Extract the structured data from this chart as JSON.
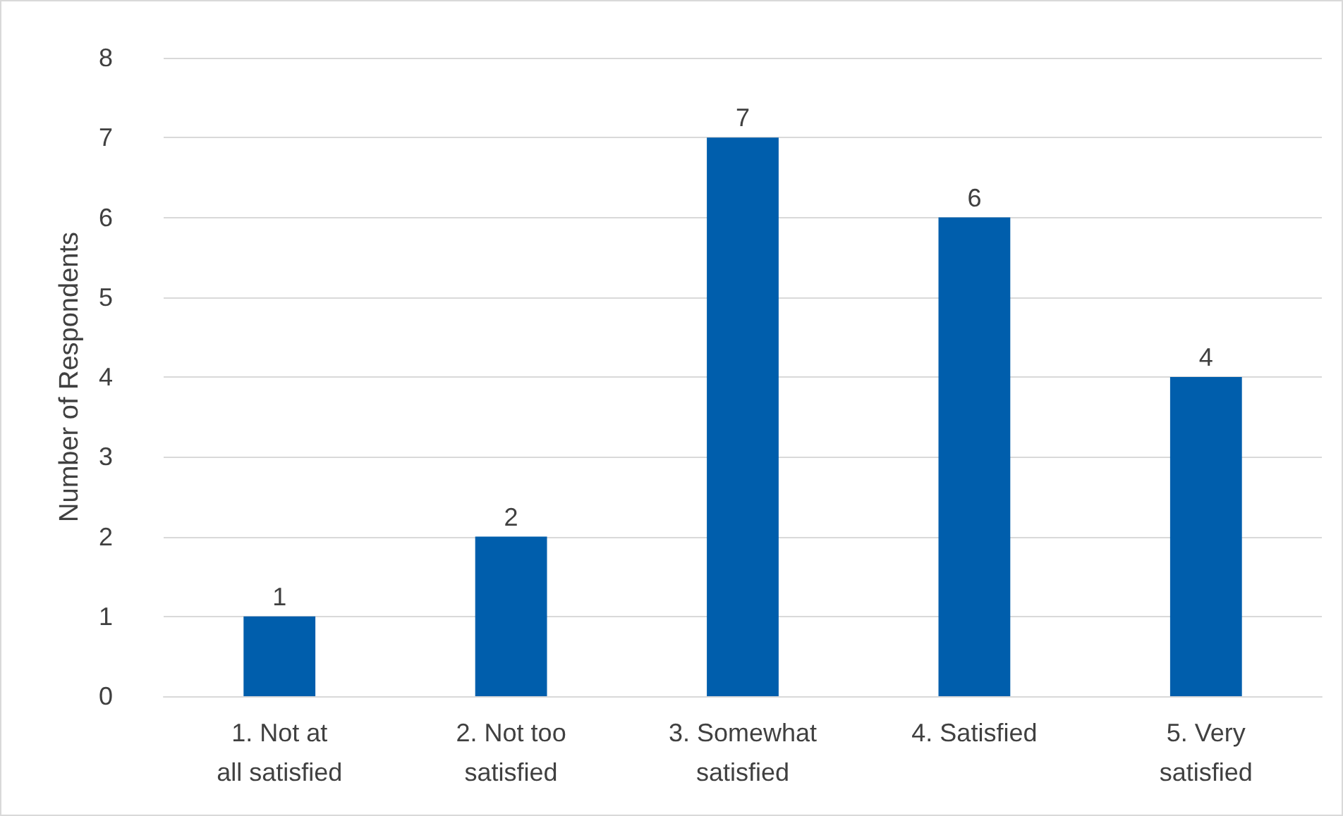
{
  "chart_data": {
    "type": "bar",
    "ylabel": "Number of Respondents",
    "categories": [
      "1. Not at all satisfied",
      "2. Not too satisfied",
      "3. Somewhat satisfied",
      "4. Satisfied",
      "5. Very satisfied"
    ],
    "values": [
      1,
      2,
      7,
      6,
      4
    ],
    "color": "#005eac",
    "ylim": [
      0,
      8
    ],
    "yticks": [
      0,
      1,
      2,
      3,
      4,
      5,
      6,
      7,
      8
    ],
    "grid": "y",
    "data_labels": true
  }
}
